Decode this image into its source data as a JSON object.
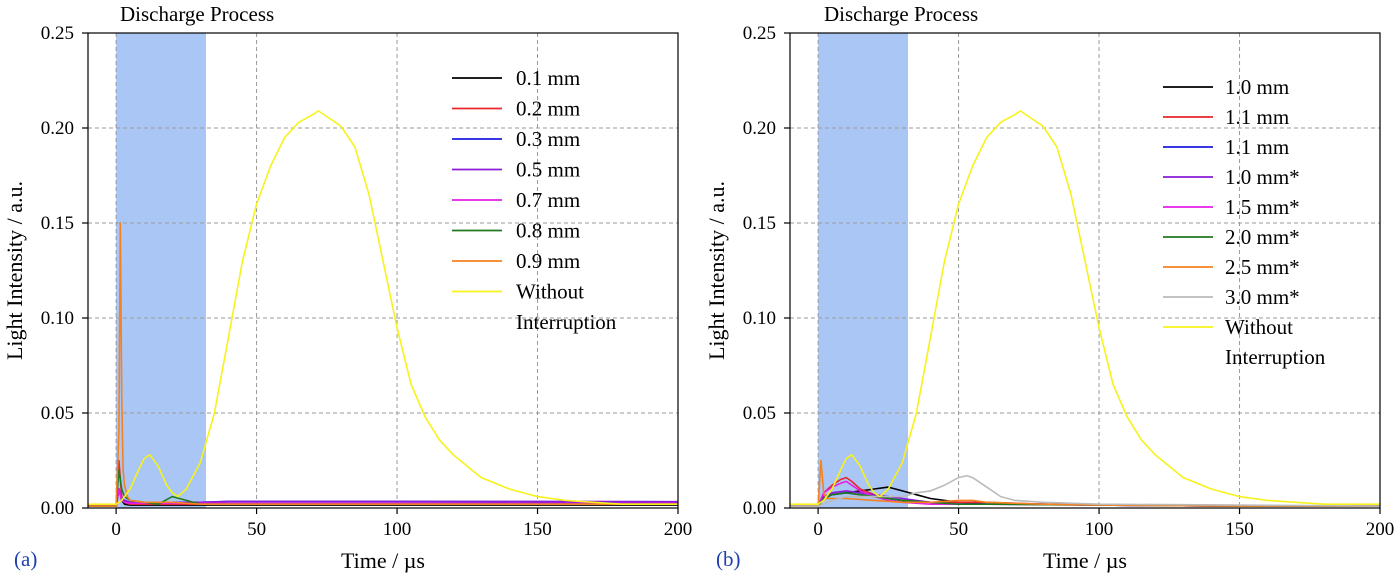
{
  "chart_data": [
    {
      "type": "line",
      "panel_label": "(a)",
      "annotation": "Discharge Process",
      "shaded_region": [
        0,
        32
      ],
      "xlabel": "Time  / µs",
      "ylabel": "Light Intensity / a.u.",
      "xlim": [
        -10,
        200
      ],
      "ylim": [
        0,
        0.25
      ],
      "xticks": [
        0,
        50,
        100,
        150,
        200
      ],
      "yticks": [
        0.0,
        0.05,
        0.1,
        0.15,
        0.2,
        0.25
      ],
      "xtick_labels": [
        "0",
        "50",
        "100",
        "150",
        "200"
      ],
      "ytick_labels": [
        "0.00",
        "0.05",
        "0.10",
        "0.15",
        "0.20",
        "0.25"
      ],
      "grid": true,
      "legend_position": "top-right",
      "series": [
        {
          "name": "0.1 mm",
          "color": "#000000",
          "x": [
            -10,
            0,
            1,
            2,
            3,
            5,
            10,
            20,
            30,
            50,
            100,
            150,
            200
          ],
          "y": [
            0.001,
            0.001,
            0.01,
            0.004,
            0.002,
            0.0015,
            0.0015,
            0.0015,
            0.0015,
            0.0015,
            0.0015,
            0.0015,
            0.0015
          ]
        },
        {
          "name": "0.2 mm",
          "color": "#e8262b",
          "x": [
            -10,
            0,
            1,
            2,
            3,
            5,
            10,
            20,
            30,
            50,
            100,
            150,
            200
          ],
          "y": [
            0.001,
            0.001,
            0.025,
            0.006,
            0.003,
            0.002,
            0.002,
            0.002,
            0.002,
            0.002,
            0.002,
            0.002,
            0.002
          ]
        },
        {
          "name": "0.3 mm",
          "color": "#1c1ce0",
          "x": [
            -10,
            0,
            1,
            2,
            3,
            5,
            10,
            20,
            30,
            40,
            60,
            100,
            150,
            200
          ],
          "y": [
            0.001,
            0.001,
            0.01,
            0.005,
            0.004,
            0.003,
            0.003,
            0.003,
            0.003,
            0.0035,
            0.0035,
            0.0035,
            0.0033,
            0.003
          ]
        },
        {
          "name": "0.5 mm",
          "color": "#8a1bd6",
          "x": [
            -10,
            0,
            1,
            2,
            3,
            5,
            10,
            20,
            30,
            40,
            60,
            100,
            150,
            200
          ],
          "y": [
            0.001,
            0.001,
            0.01,
            0.005,
            0.004,
            0.003,
            0.003,
            0.003,
            0.003,
            0.0035,
            0.0035,
            0.0035,
            0.0035,
            0.0033
          ]
        },
        {
          "name": "0.7 mm",
          "color": "#e61ee6",
          "x": [
            -10,
            0,
            1,
            2,
            3,
            5,
            10,
            20,
            30,
            50,
            100,
            150,
            200
          ],
          "y": [
            0.001,
            0.001,
            0.01,
            0.004,
            0.003,
            0.0025,
            0.0025,
            0.0025,
            0.0025,
            0.0025,
            0.0025,
            0.0025,
            0.0025
          ]
        },
        {
          "name": "0.8 mm",
          "color": "#1f7a1f",
          "x": [
            -10,
            0,
            1,
            2,
            3,
            5,
            10,
            15,
            20,
            25,
            30,
            50,
            100,
            150,
            200
          ],
          "y": [
            0.001,
            0.001,
            0.02,
            0.01,
            0.006,
            0.004,
            0.003,
            0.002,
            0.006,
            0.004,
            0.002,
            0.002,
            0.002,
            0.002,
            0.002
          ]
        },
        {
          "name": "0.9 mm",
          "color": "#f58220",
          "x": [
            -10,
            0,
            1,
            1.5,
            2,
            2.5,
            3,
            4,
            5,
            10,
            20,
            30,
            50,
            100,
            150,
            200
          ],
          "y": [
            0.001,
            0.001,
            0.04,
            0.15,
            0.06,
            0.02,
            0.012,
            0.006,
            0.004,
            0.003,
            0.003,
            0.002,
            0.002,
            0.002,
            0.002,
            0.002
          ]
        },
        {
          "name": "Without Interruption",
          "color": "#f7f21c",
          "x": [
            -10,
            0,
            2,
            5,
            8,
            10,
            12,
            15,
            18,
            20,
            22,
            25,
            30,
            35,
            40,
            45,
            50,
            55,
            60,
            65,
            70,
            72,
            75,
            80,
            85,
            90,
            95,
            100,
            105,
            110,
            115,
            120,
            125,
            130,
            140,
            150,
            160,
            170,
            180,
            190,
            200
          ],
          "y": [
            0.002,
            0.002,
            0.004,
            0.01,
            0.02,
            0.026,
            0.028,
            0.022,
            0.012,
            0.008,
            0.006,
            0.01,
            0.024,
            0.05,
            0.09,
            0.13,
            0.16,
            0.18,
            0.195,
            0.203,
            0.207,
            0.209,
            0.206,
            0.201,
            0.19,
            0.165,
            0.13,
            0.095,
            0.065,
            0.048,
            0.036,
            0.028,
            0.022,
            0.016,
            0.01,
            0.006,
            0.004,
            0.003,
            0.002,
            0.002,
            0.002
          ]
        }
      ]
    },
    {
      "type": "line",
      "panel_label": "(b)",
      "annotation": "Discharge Process",
      "shaded_region": [
        0,
        32
      ],
      "xlabel": "Time  / µs",
      "ylabel": "Light Intensity / a.u.",
      "xlim": [
        -10,
        200
      ],
      "ylim": [
        0,
        0.25
      ],
      "xticks": [
        0,
        50,
        100,
        150,
        200
      ],
      "yticks": [
        0.0,
        0.05,
        0.1,
        0.15,
        0.2,
        0.25
      ],
      "xtick_labels": [
        "0",
        "50",
        "100",
        "150",
        "200"
      ],
      "ytick_labels": [
        "0.00",
        "0.05",
        "0.10",
        "0.15",
        "0.20",
        "0.25"
      ],
      "grid": true,
      "legend_position": "top-right",
      "series": [
        {
          "name": "1.0 mm",
          "color": "#000000",
          "x": [
            -10,
            0,
            2,
            5,
            10,
            15,
            20,
            25,
            30,
            35,
            40,
            50,
            60,
            80,
            100,
            150,
            200
          ],
          "y": [
            0.001,
            0.001,
            0.006,
            0.007,
            0.008,
            0.009,
            0.01,
            0.011,
            0.009,
            0.007,
            0.005,
            0.003,
            0.002,
            0.002,
            0.0015,
            0.0012,
            0.001
          ]
        },
        {
          "name": "1.1 mm",
          "color": "#e8262b",
          "x": [
            -10,
            0,
            2,
            5,
            8,
            10,
            12,
            15,
            20,
            25,
            30,
            40,
            50,
            60,
            80,
            100,
            150,
            200
          ],
          "y": [
            0.001,
            0.001,
            0.008,
            0.012,
            0.015,
            0.016,
            0.014,
            0.01,
            0.007,
            0.005,
            0.004,
            0.003,
            0.003,
            0.003,
            0.002,
            0.0015,
            0.001,
            0.001
          ]
        },
        {
          "name": "1.1 mm",
          "color": "#1c1ce0",
          "x": [
            -10,
            0,
            2,
            5,
            10,
            15,
            20,
            25,
            30,
            40,
            50,
            60,
            80,
            100,
            150,
            200
          ],
          "y": [
            0.001,
            0.001,
            0.005,
            0.007,
            0.008,
            0.007,
            0.006,
            0.005,
            0.004,
            0.003,
            0.002,
            0.002,
            0.002,
            0.0015,
            0.001,
            0.001
          ]
        },
        {
          "name": "1.0 mm*",
          "color": "#8a1bd6",
          "x": [
            -10,
            0,
            2,
            5,
            10,
            15,
            20,
            25,
            30,
            40,
            50,
            60,
            80,
            100,
            150,
            200
          ],
          "y": [
            0.001,
            0.001,
            0.006,
            0.008,
            0.009,
            0.008,
            0.007,
            0.006,
            0.005,
            0.003,
            0.002,
            0.002,
            0.002,
            0.0015,
            0.001,
            0.001
          ]
        },
        {
          "name": "1.5 mm*",
          "color": "#e61ee6",
          "x": [
            -10,
            0,
            2,
            5,
            8,
            10,
            12,
            15,
            20,
            25,
            30,
            40,
            50,
            60,
            100,
            150,
            200
          ],
          "y": [
            0.001,
            0.001,
            0.008,
            0.011,
            0.013,
            0.014,
            0.012,
            0.009,
            0.006,
            0.004,
            0.003,
            0.002,
            0.002,
            0.002,
            0.0015,
            0.001,
            0.001
          ]
        },
        {
          "name": "2.0 mm*",
          "color": "#1f7a1f",
          "x": [
            -10,
            0,
            2,
            5,
            10,
            15,
            20,
            25,
            30,
            40,
            50,
            60,
            100,
            150,
            200
          ],
          "y": [
            0.001,
            0.001,
            0.005,
            0.007,
            0.008,
            0.007,
            0.006,
            0.005,
            0.004,
            0.003,
            0.002,
            0.002,
            0.0015,
            0.001,
            0.001
          ]
        },
        {
          "name": "2.5 mm*",
          "color": "#f58220",
          "x": [
            -10,
            0,
            1,
            2,
            3,
            5,
            10,
            20,
            30,
            40,
            50,
            55,
            60,
            80,
            100,
            150,
            200
          ],
          "y": [
            0.001,
            0.001,
            0.025,
            0.008,
            0.005,
            0.005,
            0.005,
            0.004,
            0.003,
            0.003,
            0.004,
            0.004,
            0.003,
            0.002,
            0.0015,
            0.001,
            0.001
          ]
        },
        {
          "name": "3.0 mm*",
          "color": "#bbbbbb",
          "x": [
            -10,
            0,
            5,
            10,
            20,
            30,
            35,
            40,
            45,
            50,
            53,
            55,
            60,
            65,
            70,
            80,
            100,
            150,
            200
          ],
          "y": [
            0.001,
            0.001,
            0.004,
            0.006,
            0.006,
            0.006,
            0.008,
            0.009,
            0.012,
            0.016,
            0.017,
            0.016,
            0.011,
            0.006,
            0.004,
            0.003,
            0.002,
            0.0015,
            0.001
          ]
        },
        {
          "name": "Without Interruption",
          "color": "#f7f21c",
          "x": [
            -10,
            0,
            2,
            5,
            8,
            10,
            12,
            15,
            18,
            20,
            22,
            25,
            30,
            35,
            40,
            45,
            50,
            55,
            60,
            65,
            70,
            72,
            75,
            80,
            85,
            90,
            95,
            100,
            105,
            110,
            115,
            120,
            125,
            130,
            140,
            150,
            160,
            170,
            180,
            190,
            200
          ],
          "y": [
            0.002,
            0.002,
            0.004,
            0.01,
            0.02,
            0.026,
            0.028,
            0.022,
            0.012,
            0.008,
            0.006,
            0.01,
            0.024,
            0.05,
            0.09,
            0.13,
            0.16,
            0.18,
            0.195,
            0.203,
            0.207,
            0.209,
            0.206,
            0.201,
            0.19,
            0.165,
            0.13,
            0.095,
            0.065,
            0.048,
            0.036,
            0.028,
            0.022,
            0.016,
            0.01,
            0.006,
            0.004,
            0.003,
            0.002,
            0.002,
            0.002
          ]
        }
      ]
    }
  ]
}
